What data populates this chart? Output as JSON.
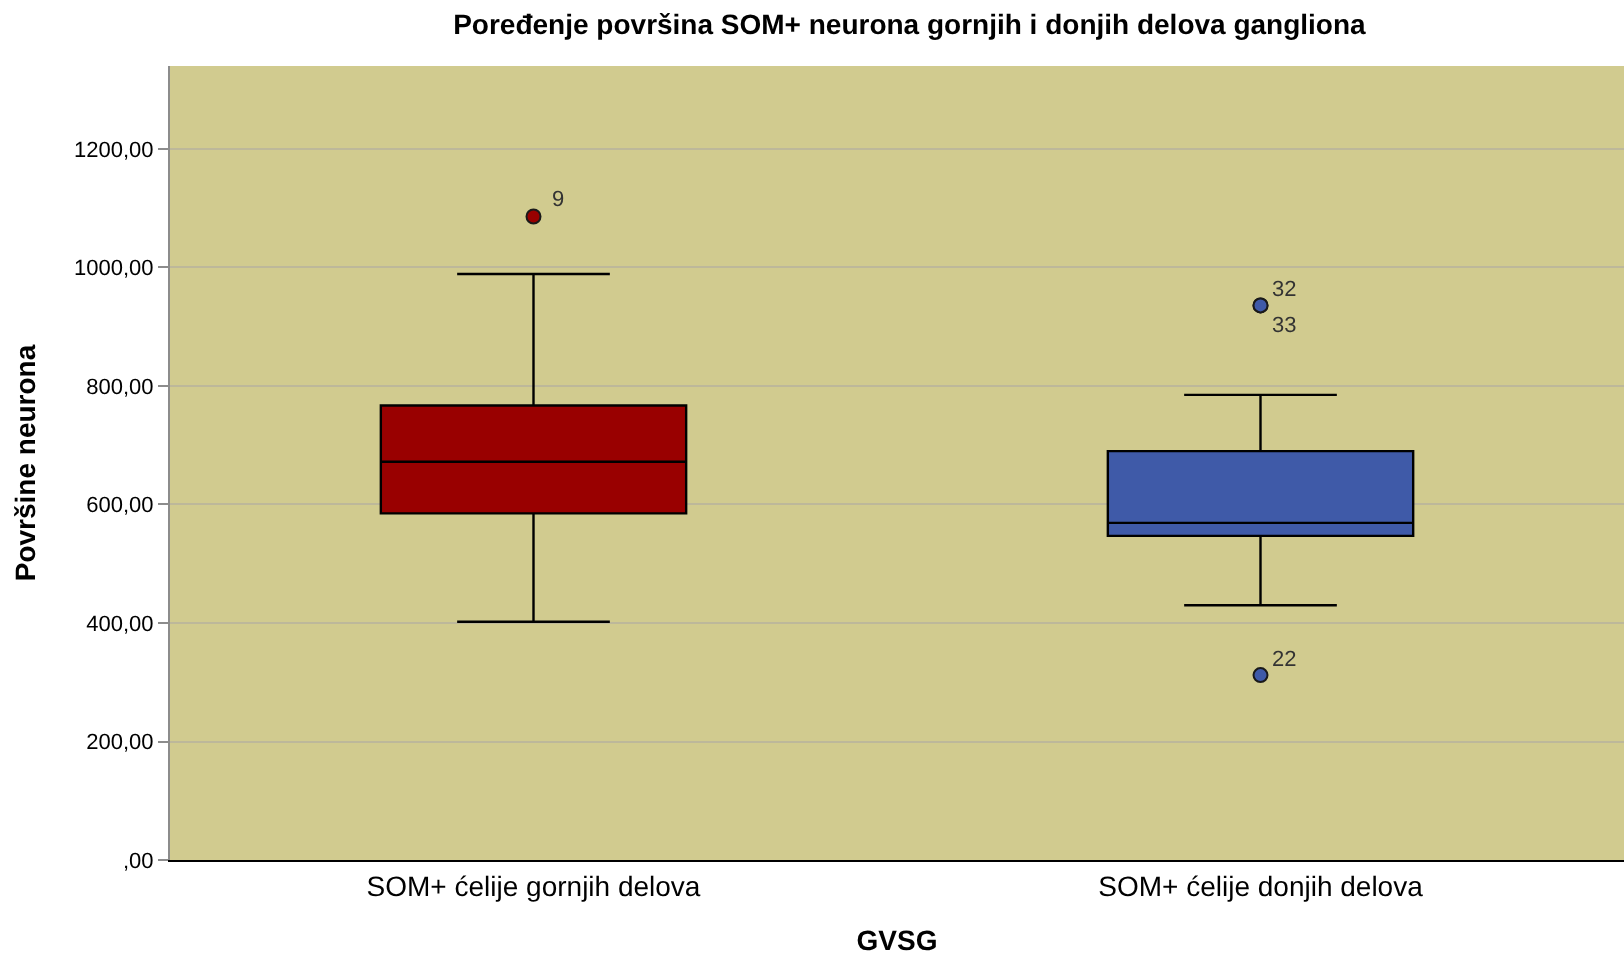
{
  "chart_data": {
    "type": "box",
    "title": "Poređenje površina SOM+ neurona gornjih i donjih delova gangliona",
    "xlabel": "GVSG",
    "ylabel": "Površine neurona",
    "categories": [
      "SOM+ ćelije gornjih delova",
      "SOM+ ćelije donjih delova"
    ],
    "colors": [
      "#990000",
      "#3f5aa8"
    ],
    "boxes": [
      {
        "low": 402,
        "q1": 585,
        "median": 672,
        "q3": 767,
        "high": 989,
        "outliers": [
          1086
        ]
      },
      {
        "low": 430,
        "q1": 547,
        "median": 569,
        "q3": 690,
        "high": 785,
        "outliers": [
          936,
          936,
          312
        ]
      }
    ],
    "ylim": [
      0,
      1340
    ],
    "yticks": [
      {
        "value": 0,
        "label": ",00"
      },
      {
        "value": 200,
        "label": "200,00"
      },
      {
        "value": 400,
        "label": "400,00"
      },
      {
        "value": 600,
        "label": "600,00"
      },
      {
        "value": 800,
        "label": "800,00"
      },
      {
        "value": 1000,
        "label": "1000,00"
      },
      {
        "value": 1200,
        "label": "1200,00"
      }
    ],
    "grid": "y",
    "marker": "circle",
    "annotations": [
      "9",
      "32",
      "33",
      "22"
    ]
  }
}
